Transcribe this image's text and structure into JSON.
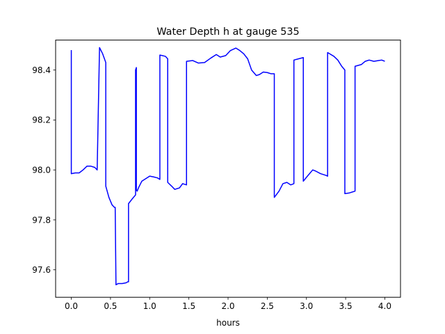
{
  "chart_data": {
    "type": "line",
    "title": "Water Depth h at gauge 535",
    "xlabel": "hours",
    "ylabel": "",
    "xlim": [
      -0.2,
      4.2
    ],
    "ylim": [
      97.49,
      98.52
    ],
    "xticks": [
      0.0,
      0.5,
      1.0,
      1.5,
      2.0,
      2.5,
      3.0,
      3.5,
      4.0
    ],
    "xtick_labels": [
      "0.0",
      "0.5",
      "1.0",
      "1.5",
      "2.0",
      "2.5",
      "3.0",
      "3.5",
      "4.0"
    ],
    "yticks": [
      97.6,
      97.8,
      98.0,
      98.2,
      98.4
    ],
    "ytick_labels": [
      "97.6",
      "97.8",
      "98.0",
      "98.2",
      "98.4"
    ],
    "grid": false,
    "series": [
      {
        "color": "#0000ff",
        "x": [
          0.0,
          0.0,
          0.05,
          0.1,
          0.15,
          0.2,
          0.25,
          0.3,
          0.33,
          0.36,
          0.36,
          0.4,
          0.44,
          0.44,
          0.48,
          0.52,
          0.55,
          0.56,
          0.57,
          0.57,
          0.6,
          0.65,
          0.7,
          0.72,
          0.73,
          0.73,
          0.78,
          0.82,
          0.82,
          0.83,
          0.83,
          0.84,
          0.86,
          0.9,
          0.95,
          1.0,
          1.05,
          1.1,
          1.13,
          1.13,
          1.16,
          1.2,
          1.23,
          1.23,
          1.28,
          1.32,
          1.38,
          1.42,
          1.47,
          1.47,
          1.55,
          1.62,
          1.7,
          1.78,
          1.85,
          1.9,
          1.97,
          2.03,
          2.1,
          2.15,
          2.2,
          2.25,
          2.3,
          2.36,
          2.4,
          2.45,
          2.5,
          2.55,
          2.59,
          2.59,
          2.65,
          2.7,
          2.75,
          2.8,
          2.84,
          2.84,
          2.9,
          2.96,
          2.96,
          3.02,
          3.08,
          3.12,
          3.18,
          3.25,
          3.27,
          3.27,
          3.35,
          3.4,
          3.45,
          3.49,
          3.49,
          3.55,
          3.62,
          3.62,
          3.7,
          3.75,
          3.8,
          3.86,
          3.92,
          3.96,
          4.0
        ],
        "y": [
          98.48,
          97.985,
          97.988,
          97.988,
          98.0,
          98.015,
          98.015,
          98.01,
          98.0,
          98.49,
          98.49,
          98.465,
          98.43,
          97.935,
          97.89,
          97.86,
          97.85,
          97.85,
          97.54,
          97.54,
          97.545,
          97.545,
          97.548,
          97.552,
          97.552,
          97.865,
          97.885,
          97.9,
          98.4,
          98.41,
          97.92,
          97.915,
          97.93,
          97.955,
          97.965,
          97.975,
          97.972,
          97.968,
          97.962,
          98.46,
          98.458,
          98.455,
          98.445,
          97.95,
          97.935,
          97.922,
          97.928,
          97.945,
          97.94,
          98.435,
          98.438,
          98.428,
          98.43,
          98.448,
          98.462,
          98.452,
          98.458,
          98.478,
          98.488,
          98.478,
          98.465,
          98.445,
          98.4,
          98.378,
          98.382,
          98.392,
          98.39,
          98.385,
          98.385,
          97.89,
          97.915,
          97.945,
          97.95,
          97.94,
          97.945,
          98.44,
          98.445,
          98.45,
          97.955,
          97.978,
          98.0,
          97.995,
          97.985,
          97.978,
          97.975,
          98.47,
          98.455,
          98.44,
          98.415,
          98.4,
          97.905,
          97.908,
          97.915,
          98.415,
          98.422,
          98.435,
          98.44,
          98.435,
          98.438,
          98.44,
          98.435
        ]
      }
    ]
  }
}
